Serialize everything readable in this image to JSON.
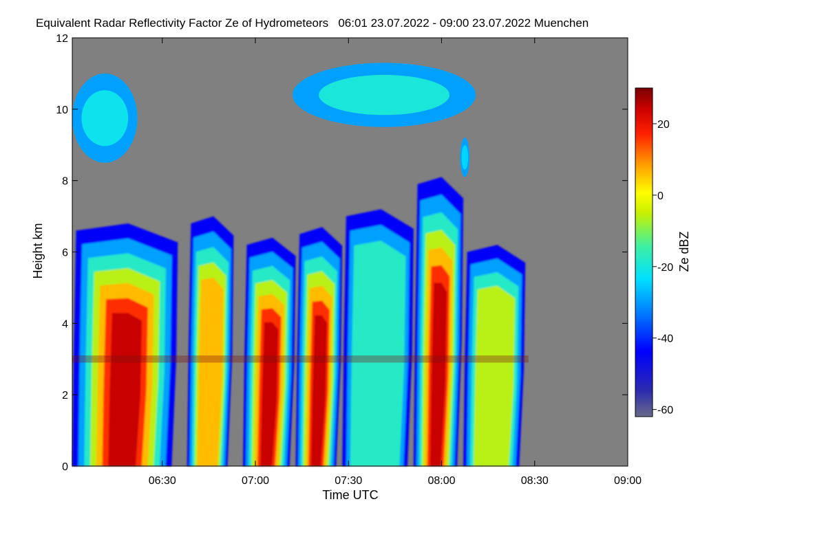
{
  "chart_data": {
    "type": "heatmap",
    "title": "Equivalent Radar Reflectivity Factor Ze of Hydrometeors   06:01 23.07.2022 - 09:00 23.07.2022 Muenchen",
    "xlabel": "Time UTC",
    "ylabel": "Height km",
    "x_range_minutes": [
      361,
      540
    ],
    "x_ticks": [
      {
        "label": "06:30",
        "minutes": 390
      },
      {
        "label": "07:00",
        "minutes": 420
      },
      {
        "label": "07:30",
        "minutes": 450
      },
      {
        "label": "08:00",
        "minutes": 480
      },
      {
        "label": "08:30",
        "minutes": 510
      },
      {
        "label": "09:00",
        "minutes": 540
      }
    ],
    "ylim": [
      0,
      12
    ],
    "y_ticks": [
      "0",
      "2",
      "4",
      "6",
      "8",
      "10",
      "12"
    ],
    "colorbar": {
      "label": "Ze dBZ",
      "range": [
        -62,
        30
      ],
      "ticks": [
        "20",
        "0",
        "-20",
        "-40",
        "-60"
      ],
      "no_signal_color": "#808080"
    },
    "echo_cells": [
      {
        "t": [
          361,
          394
        ],
        "top_km": 6.6,
        "peak_dbz": 26
      },
      {
        "t": [
          398,
          412
        ],
        "top_km": 6.8,
        "peak_dbz": 10
      },
      {
        "t": [
          416,
          432
        ],
        "top_km": 6.2,
        "peak_dbz": 24
      },
      {
        "t": [
          433,
          447
        ],
        "top_km": 6.5,
        "peak_dbz": 26
      },
      {
        "t": [
          448,
          470
        ],
        "top_km": 7.0,
        "peak_dbz": -8
      },
      {
        "t": [
          471,
          486
        ],
        "top_km": 7.9,
        "peak_dbz": 24
      },
      {
        "t": [
          487,
          506
        ],
        "top_km": 6.0,
        "peak_dbz": -5
      }
    ],
    "cirrus_layers": [
      {
        "t": [
          361,
          382
        ],
        "height_km": [
          8.5,
          11.0
        ],
        "peak_dbz": -22
      },
      {
        "t": [
          432,
          491
        ],
        "height_km": [
          9.5,
          11.3
        ],
        "peak_dbz": -20
      },
      {
        "t": [
          486,
          489
        ],
        "height_km": [
          8.1,
          9.2
        ],
        "peak_dbz": -25
      }
    ],
    "bright_band_km": 3.0
  }
}
